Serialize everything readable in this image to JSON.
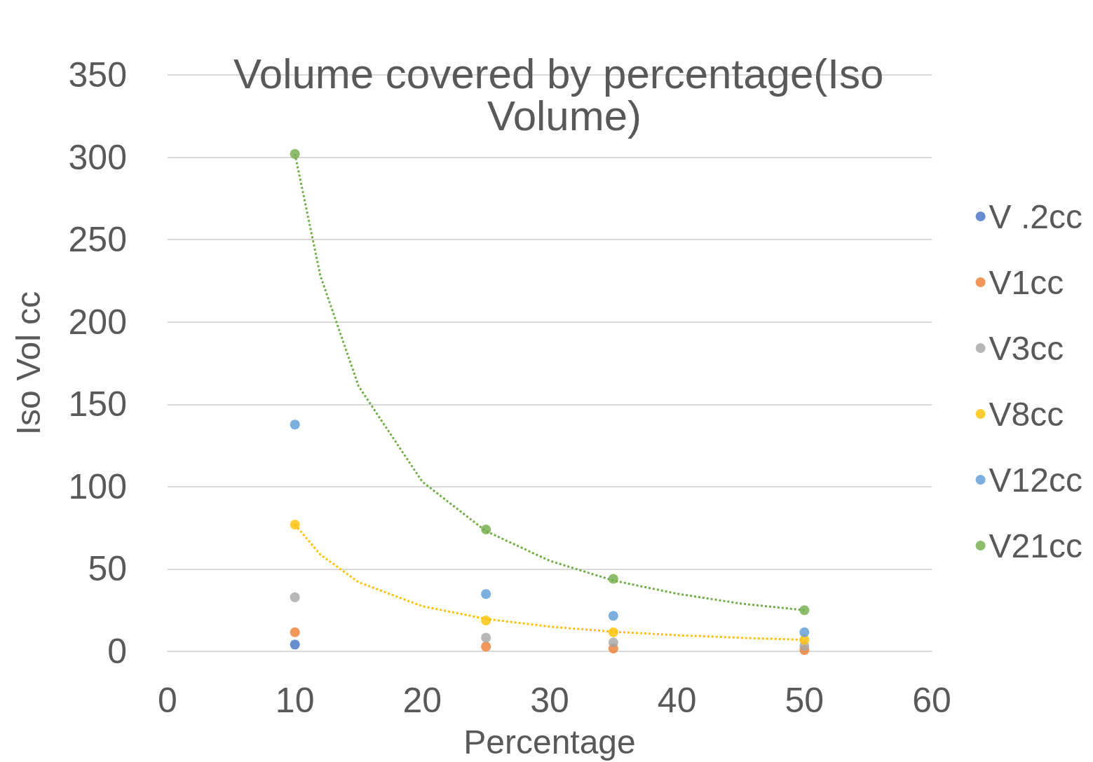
{
  "chart_data": {
    "type": "scatter",
    "title": "Volume covered by percentage(Iso Volume)",
    "xlabel": "Percentage",
    "ylabel": "Iso Vol cc",
    "x": [
      10,
      25,
      35,
      50
    ],
    "xlim": [
      0,
      60
    ],
    "xticks": [
      0,
      10,
      20,
      30,
      40,
      50,
      60
    ],
    "ylim": [
      0,
      350
    ],
    "yticks": [
      0,
      50,
      100,
      150,
      200,
      250,
      300,
      350
    ],
    "grid": "y",
    "legend": "right",
    "marker": "circle",
    "series": [
      {
        "name": "V .2cc",
        "color": "#4472c4",
        "values": [
          4.1,
          null,
          null,
          null
        ]
      },
      {
        "name": "V1cc",
        "color": "#ed7d31",
        "values": [
          11.6,
          2.9,
          1.7,
          0.8
        ]
      },
      {
        "name": "V3cc",
        "color": "#a5a5a5",
        "values": [
          32.8,
          8.3,
          5.4,
          3.3
        ]
      },
      {
        "name": "V8cc",
        "color": "#ffc000",
        "values": [
          77,
          18.7,
          11.6,
          7
        ]
      },
      {
        "name": "V12cc",
        "color": "#5b9bd5",
        "values": [
          137.7,
          34.8,
          21.6,
          11.6
        ]
      },
      {
        "name": "V21cc",
        "color": "#70ad47",
        "values": [
          302,
          74,
          44,
          25
        ]
      },
      {
        "type": "line",
        "color": "#70ad47",
        "line_style": "dotted",
        "marker": "none",
        "x": [
          10,
          12,
          15,
          20,
          25,
          30,
          35,
          40,
          45,
          50
        ],
        "values": [
          302,
          228,
          161,
          103,
          73,
          55,
          43,
          35,
          29,
          25
        ]
      },
      {
        "type": "line",
        "color": "#ffc000",
        "line_style": "dotted",
        "marker": "none",
        "x": [
          10,
          12,
          15,
          20,
          25,
          30,
          35,
          40,
          45,
          50
        ],
        "values": [
          77,
          58.7,
          42,
          27.4,
          19.7,
          15,
          11.9,
          9.8,
          8.2,
          7
        ]
      }
    ]
  }
}
